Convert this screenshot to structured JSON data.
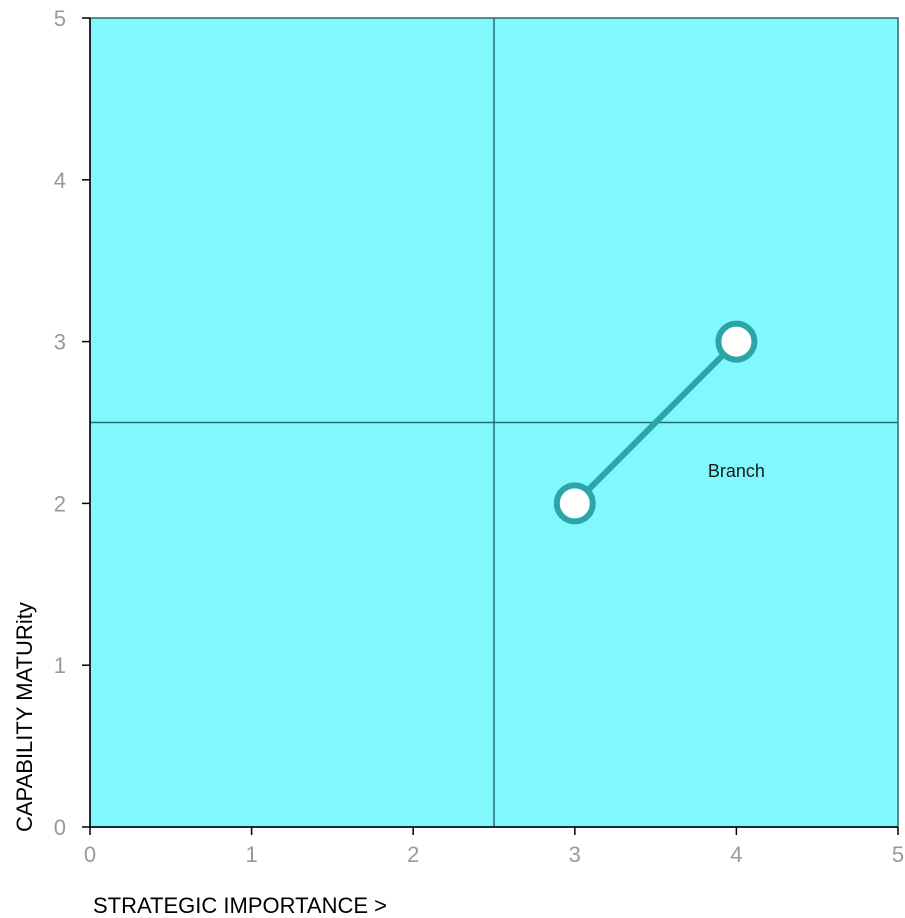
{
  "chart_data": {
    "type": "scatter",
    "title": "",
    "xlabel": "STRATEGIC IMPORTANCE >",
    "ylabel": "CAPABILITY MATURity",
    "xlim": [
      0,
      5
    ],
    "ylim": [
      0,
      5
    ],
    "x_ticks": [
      "0",
      "1",
      "2",
      "3",
      "4",
      "5"
    ],
    "y_ticks": [
      "0",
      "1",
      "2",
      "3",
      "4",
      "5"
    ],
    "quadrant_dividers": {
      "x": 2.5,
      "y": 2.5
    },
    "grid": false,
    "series": [
      {
        "label": "Branch",
        "points": [
          {
            "x": 3,
            "y": 2
          },
          {
            "x": 4,
            "y": 3
          }
        ],
        "label_at": {
          "x": 4,
          "y": 2.2
        }
      }
    ],
    "colors": {
      "plot_background": "#80f8fd",
      "plot_border": "#2a6b72",
      "divider": "#2a6b72",
      "series_line": "#2aa6a8",
      "marker_fill": "#ffffff",
      "tick_label": "#9a9a9a"
    }
  }
}
